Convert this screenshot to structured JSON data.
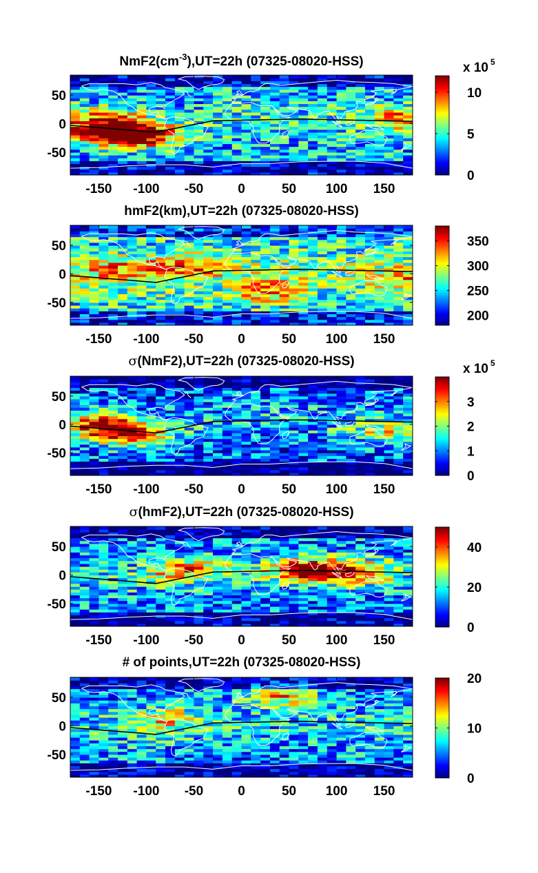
{
  "chart_data": [
    {
      "type": "heatmap",
      "title_main": "NmF2(cm",
      "title_sup": "-3",
      "title_rest": "),UT=22h (07325-08020-HSS)",
      "xlim": [
        -180,
        180
      ],
      "ylim": [
        -90,
        85
      ],
      "xticks": [
        -150,
        -100,
        -50,
        0,
        50,
        100,
        150
      ],
      "yticks": [
        50,
        0,
        -50
      ],
      "colorbar": {
        "range": [
          0,
          12
        ],
        "ticks": [
          0,
          5,
          10
        ],
        "scale_label": "x 10",
        "scale_exp": "5",
        "colormap": "jet"
      },
      "features": {
        "magnetic_equator": true,
        "coastlines": true,
        "hotspots": [
          {
            "lon": -110,
            "lat": -20,
            "value": 11.5
          },
          {
            "lon": -150,
            "lat": -15,
            "value": 9.5
          },
          {
            "lon": -140,
            "lat": 10,
            "value": 8
          },
          {
            "lon": 170,
            "lat": 10,
            "value": 8
          }
        ],
        "background_level": 3.5
      }
    },
    {
      "type": "heatmap",
      "title": "hmF2(km),UT=22h (07325-08020-HSS)",
      "xlim": [
        -180,
        180
      ],
      "ylim": [
        -90,
        85
      ],
      "xticks": [
        -150,
        -100,
        -50,
        0,
        50,
        100,
        150
      ],
      "yticks": [
        50,
        0,
        -50
      ],
      "colorbar": {
        "range": [
          180,
          380
        ],
        "ticks": [
          200,
          250,
          300,
          350
        ],
        "colormap": "jet"
      },
      "features": {
        "magnetic_equator": true,
        "coastlines": true,
        "hotspots": [
          {
            "lon": -60,
            "lat": 15,
            "value": 330
          },
          {
            "lon": 30,
            "lat": -30,
            "value": 330
          },
          {
            "lon": -130,
            "lat": 10,
            "value": 310
          },
          {
            "lon": 170,
            "lat": -10,
            "value": 310
          }
        ],
        "background_level": 255
      }
    },
    {
      "type": "heatmap",
      "title_main": "(NmF2),UT=22h (07325-08020-HSS)",
      "title_symbol": "σ",
      "xlim": [
        -180,
        180
      ],
      "ylim": [
        -90,
        85
      ],
      "xticks": [
        -150,
        -100,
        -50,
        0,
        50,
        100,
        150
      ],
      "yticks": [
        50,
        0,
        -50
      ],
      "colorbar": {
        "range": [
          0,
          4
        ],
        "ticks": [
          0,
          1,
          2,
          3
        ],
        "scale_label": "x 10",
        "scale_exp": "5",
        "colormap": "jet"
      },
      "features": {
        "magnetic_equator": true,
        "coastlines": true,
        "hotspots": [
          {
            "lon": -120,
            "lat": -15,
            "value": 3.6
          },
          {
            "lon": -150,
            "lat": 5,
            "value": 2.8
          },
          {
            "lon": 155,
            "lat": -15,
            "value": 2.2
          }
        ],
        "background_level": 0.8
      }
    },
    {
      "type": "heatmap",
      "title_main": "(hmF2),UT=22h (07325-08020-HSS)",
      "title_symbol": "σ",
      "xlim": [
        -180,
        180
      ],
      "ylim": [
        -90,
        85
      ],
      "xticks": [
        -150,
        -100,
        -50,
        0,
        50,
        100,
        150
      ],
      "yticks": [
        50,
        0,
        -50
      ],
      "colorbar": {
        "range": [
          0,
          50
        ],
        "ticks": [
          0,
          20,
          40
        ],
        "colormap": "jet"
      },
      "features": {
        "magnetic_equator": true,
        "coastlines": true,
        "hotspots": [
          {
            "lon": 70,
            "lat": 10,
            "value": 42
          },
          {
            "lon": -60,
            "lat": 10,
            "value": 35
          },
          {
            "lon": 120,
            "lat": 5,
            "value": 35
          }
        ],
        "background_level": 12
      }
    },
    {
      "type": "heatmap",
      "title": "# of points,UT=22h (07325-08020-HSS)",
      "xlim": [
        -180,
        180
      ],
      "ylim": [
        -90,
        85
      ],
      "xticks": [
        -150,
        -100,
        -50,
        0,
        50,
        100,
        150
      ],
      "yticks": [
        50,
        0,
        -50
      ],
      "colorbar": {
        "range": [
          0,
          20
        ],
        "ticks": [
          0,
          10,
          20
        ],
        "colormap": "jet"
      },
      "features": {
        "magnetic_equator": true,
        "coastlines": true,
        "hotspots": [
          {
            "lon": 40,
            "lat": 55,
            "value": 14
          },
          {
            "lon": -80,
            "lat": 15,
            "value": 12
          }
        ],
        "background_level": 5
      }
    }
  ]
}
